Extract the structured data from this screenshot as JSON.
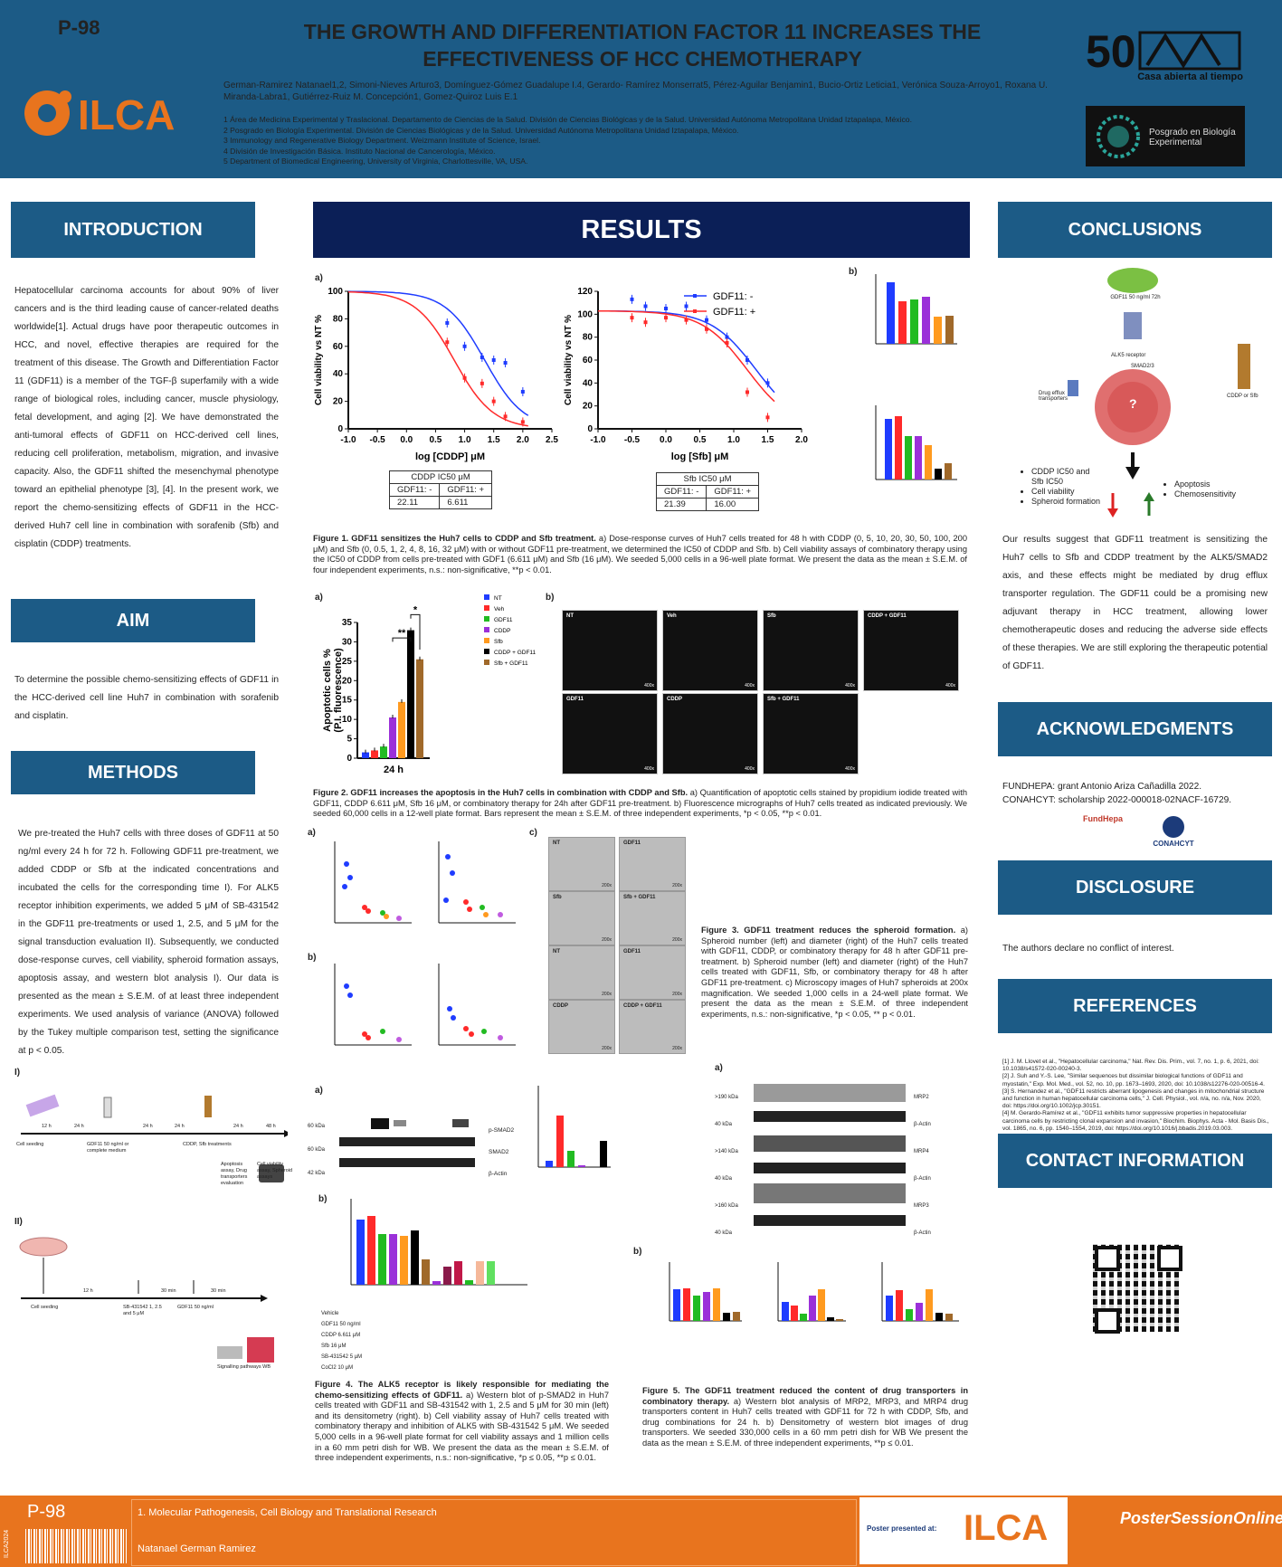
{
  "header": {
    "code": "P-98",
    "title": "THE GROWTH AND DIFFERENTIATION FACTOR 11 INCREASES THE EFFECTIVENESS OF HCC CHEMOTHERAPY",
    "authors": "German-Ramirez Natanael1,2, Simoni-Nieves Arturo3, Domínguez-Gómez Guadalupe I.4, Gerardo- Ramírez Monserrat5, Pérez-Aguilar Benjamin1, Bucio-Ortiz Leticia1, Verónica Souza-Arroyo1, Roxana U. Miranda-Labra1, Gutiérrez-Ruiz M. Concepción1, Gomez-Quiroz Luis E.1",
    "affiliations": [
      "1 Área de Medicina Experimental y Traslacional. Departamento de Ciencias de la Salud. División de Ciencias Biológicas y de la Salud. Universidad Autónoma Metropolitana Unidad Iztapalapa, México.",
      "2 Posgrado en Biología Experimental. División de Ciencias Biológicas y de la Salud. Universidad Autónoma Metropolitana Unidad Iztapalapa, México.",
      "3 Immunology and Regenerative Biology Department. Weizmann Institute of Science, Israel.",
      "4 División de Investigación Básica. Instituto Nacional de Cancerología, México.",
      "5 Department of Biomedical Engineering, University of Virginia, Charlottesville, VA, USA."
    ],
    "logo_ilca": "ILCA",
    "logo_uam_tag": "Casa abierta al tiempo",
    "logo_pbe": "Posgrado en Biología Experimental"
  },
  "intro": {
    "heading": "INTRODUCTION",
    "text": "Hepatocellular carcinoma accounts for about 90% of liver cancers and is the third leading cause of cancer-related deaths worldwide[1]. Actual drugs have poor therapeutic outcomes in HCC, and novel, effective therapies are required for the treatment of this disease. The Growth and Differentiation Factor 11 (GDF11) is a member of the TGF-β superfamily with a wide range of biological roles, including cancer, muscle physiology, fetal development, and aging [2]. We have demonstrated the anti-tumoral effects of GDF11 on HCC-derived cell lines, reducing cell proliferation, metabolism, migration, and invasive capacity. Also, the GDF11 shifted the mesenchymal phenotype toward an epithelial phenotype [3], [4]. In the present work, we report the chemo-sensitizing effects of GDF11 in the HCC-derived Huh7 cell line in combination with sorafenib (Sfb) and cisplatin (CDDP) treatments."
  },
  "aim": {
    "heading": "AIM",
    "text": "To determine the possible chemo-sensitizing effects of GDF11 in the HCC-derived cell line Huh7 in combination with sorafenib and cisplatin."
  },
  "methods": {
    "heading": "METHODS",
    "text": "We pre-treated the Huh7 cells with three doses of GDF11 at 50 ng/ml every 24 h for 72 h. Following GDF11 pre-treatment, we added CDDP or Sfb at the indicated concentrations and incubated the cells for the corresponding time I). For ALK5 receptor inhibition experiments, we added 5 μM of SB-431542 in the GDF11 pre-treatments or used 1, 2.5, and 5 μM for the signal transduction evaluation II). Subsequently, we conducted dose-response curves, cell viability, spheroid formation assays, apoptosis assay, and western blot analysis I). Our data is presented as the mean ± S.E.M. of at least three independent experiments. We used analysis of variance (ANOVA) followed by the Tukey multiple comparison test, setting the significance at p < 0.05.",
    "timeline1_label": "I)",
    "timeline1_items": [
      "Cell seeding",
      "12 h",
      "24 h",
      "GDF11 50 ng/ml or complete medium",
      "24 h",
      "24 h",
      "CDDP, Sfb treatments",
      "24 h",
      "48 h",
      "Apoptosis assay, Drug transporters evaluation",
      "Cell viability assay, Spheroid assays"
    ],
    "timeline2_label": "II)",
    "timeline2_items": [
      "Cell seeding",
      "12 h",
      "SB-431542 1, 2.5 and 5 μM",
      "30 min",
      "GDF11 50 ng/ml",
      "30 min",
      "Signalling pathways WB"
    ]
  },
  "results": {
    "heading": "RESULTS",
    "fig1": {
      "label_a": "a)",
      "label_b": "b)",
      "caption_bold": "Figure 1. GDF11 sensitizes the Huh7 cells to CDDP and Sfb treatment.",
      "caption": " a) Dose-response curves of Huh7 cells treated for 48 h with CDDP (0, 5, 10, 20, 30, 50, 100, 200 μM) and Sfb (0, 0.5, 1, 2, 4, 8, 16, 32 μM) with or without GDF11 pre-treatment, we determined the IC50 of CDDP and Sfb. b) Cell viability assays of combinatory therapy using the IC50 of CDDP from cells pre-treated with GDF1 (6.611 μM) and Sfb (16 μM). We seeded 5,000 cells in a 96-well plate format. We present the data as the mean ± S.E.M. of four independent experiments, n.s.: non-significative, **p < 0.01.",
      "cddp_table": {
        "title": "CDDP IC50 μM",
        "h1": "GDF11: -",
        "h2": "GDF11: +",
        "v1": "22.11",
        "v2": "6.611"
      },
      "sfb_table": {
        "title": "Sfb IC50 μM",
        "h1": "GDF11: -",
        "h2": "GDF11: +",
        "v1": "21.39",
        "v2": "16.00"
      }
    },
    "fig2": {
      "label_a": "a)",
      "label_b": "b)",
      "caption_bold": "Figure 2. GDF11 increases the apoptosis in the Huh7 cells in combination with CDDP and Sfb.",
      "caption": " a) Quantification of apoptotic cells stained by propidium iodide treated with GDF11, CDDP 6.611 μM, Sfb 16 μM, or combinatory therapy for 24h after GDF11 pre-treatment. b) Fluorescence micrographs of Huh7 cells treated as indicated previously. We seeded 60,000 cells in a 12-well plate format. Bars represent the mean ± S.E.M. of three independent experiments, *p < 0.05, **p < 0.01.",
      "panels": [
        "NT",
        "Veh",
        "Sfb",
        "CDDP + GDF11",
        "GDF11",
        "CDDP",
        "Sfb + GDF11"
      ],
      "mag": "400x"
    },
    "fig3": {
      "label_a": "a)",
      "label_b": "b)",
      "label_c": "c)",
      "caption_bold": "Figure 3. GDF11 treatment reduces the spheroid formation.",
      "caption": " a) Spheroid number (left) and diameter (right) of the Huh7 cells treated with GDF11, CDDP, or combinatory therapy for 48 h after GDF11 pre-treatment. b) Spheroid number (left) and diameter (right) of the Huh7 cells treated with GDF11, Sfb, or combinatory therapy for 48 h after GDF11 pre-treatment. c) Microscopy images of Huh7 spheroids at 200x magnification. We seeded 1,000 cells in a 24-well plate format. We present the data as the mean ± S.E.M. of three independent experiments, n.s.: non-significative, *p < 0.05, ** p < 0.01.",
      "panels": [
        "NT",
        "GDF11",
        "Sfb",
        "Sfb + GDF11",
        "NT",
        "GDF11",
        "CDDP",
        "CDDP + GDF11"
      ],
      "mag": "200x"
    },
    "fig4": {
      "label_a": "a)",
      "label_b": "b)",
      "caption_bold": "Figure 4. The ALK5 receptor is likely responsible for mediating the chemo-sensitizing effects of GDF11.",
      "caption": " a) Western blot of p-SMAD2 in Huh7 cells treated with GDF11 and SB-431542 with 1, 2.5 and 5 μM for 30 min (left) and its densitometry (right). b) Cell viability assay of Huh7 cells treated with combinatory therapy and inhibition of ALK5 with SB-431542 5 μM. We seeded 5,000 cells in a 96-well plate format for cell viability assays and 1 million cells in a 60 mm petri dish for WB. We present the data as the mean ± S.E.M. of three independent experiments, n.s.: non-significative, *p ≤ 0.05, **p ≤ 0.01.",
      "blot_rows": [
        "p-SMAD2",
        "SMAD2",
        "β-Actin"
      ],
      "blot_kda": [
        "60 kDa",
        "60 kDa",
        "42 kDa"
      ],
      "treat_rows": [
        "Vehicle",
        "GDF11 50 ng/ml",
        "CDDP 6.611 μM",
        "Sfb 16 μM",
        "SB-431542 5 μM",
        "CoCl2 10 μM"
      ]
    },
    "fig5": {
      "label_a": "a)",
      "label_b": "b)",
      "caption_bold": "Figure 5. The GDF11 treatment reduced the content of drug transporters in combinatory therapy.",
      "caption": " a) Western blot analysis of MRP2, MRP3, and MRP4 drug transporters content in Huh7 cells treated with GDF11 for 72 h with CDDP, Sfb, and drug combinations for 24 h. b) Densitometry of western blot images of drug transporters. We seeded 330,000 cells in a 60 mm petri dish for WB We present the data as the mean ± S.E.M. of three independent experiments, **p ≤ 0.01.",
      "lanes": [
        "NT",
        "Veh",
        "GDF11",
        "CDDP",
        "Sfb",
        "GDF11 + CDDP",
        "GDF11 + Sfb"
      ],
      "blot_rows": [
        "MRP2",
        "β-Actin",
        "MRP4",
        "β-Actin",
        "MRP3",
        "β-Actin"
      ],
      "blot_kda": [
        ">190 kDa",
        "40 kDa",
        ">140 kDa",
        "40 kDa",
        ">160 kDa",
        "40 kDa"
      ]
    }
  },
  "conclusions": {
    "heading": "CONCLUSIONS",
    "diagram": {
      "gdf11": "GDF11 50 ng/ml 72h",
      "receptor": "ALK5 receptor",
      "smad": "SMAD2/3",
      "efflux": "Drug efflux transporters",
      "drug": "CDDP or Sfb",
      "q": "?",
      "down_list": [
        "CDDP IC50 and Sfb IC50",
        "Cell viability",
        "Spheroid formation"
      ],
      "up_list": [
        "Apoptosis",
        "Chemosensitivity"
      ]
    },
    "text": "Our results suggest that GDF11 treatment is sensitizing the Huh7 cells to Sfb and CDDP treatment by the ALK5/SMAD2 axis, and these effects might be mediated by drug efflux transporter regulation. The GDF11 could be a promising new adjuvant therapy in HCC treatment, allowing lower chemotherapeutic doses and reducing the adverse side effects of these therapies. We are still exploring the therapeutic potential of GDF11."
  },
  "ack": {
    "heading": "ACKNOWLEDGMENTS",
    "lines": [
      "FUNDHEPA: grant Antonio Ariza Cañadilla 2022.",
      "CONAHCYT: scholarship 2022-000018-02NACF-16729."
    ],
    "logo1": "FundHepa",
    "logo2": "CONAHCYT"
  },
  "disclosure": {
    "heading": "DISCLOSURE",
    "text": "The authors declare no conflict of interest."
  },
  "references": {
    "heading": "REFERENCES",
    "items": [
      "[1]      J. M. Llovet et al., \"Hepatocellular carcinoma,\" Nat. Rev. Dis. Prim., vol. 7, no. 1, p. 6, 2021, doi: 10.1038/s41572-020-00240-3.",
      "[2]      J. Suh and Y.-S. Lee, \"Similar sequences but dissimilar biological functions of GDF11 and myostatin,\" Exp. Mol. Med., vol. 52, no. 10, pp. 1673–1693, 2020, doi: 10.1038/s12276-020-00516-4.",
      "[3]      S. Hernandez et al., \"GDF11 restricts aberrant lipogenesis and changes in mitochondrial structure and function in human hepatocellular carcinoma cells,\" J. Cell. Physiol., vol. n/a, no. n/a, Nov. 2020, doi: https://doi.org/10.1002/jcp.30151.",
      "[4]      M. Gerardo-Ramírez et al., \"GDF11 exhibits tumor suppressive properties in hepatocellular carcinoma cells by restricting clonal expansion and invasion,\" Biochim. Biophys. Acta - Mol. Basis Dis., vol. 1865, no. 6, pp. 1540–1554, 2019, doi: https://doi.org/10.1016/j.bbadis.2019.03.003."
    ]
  },
  "contact": {
    "heading": "CONTACT INFORMATION"
  },
  "footer": {
    "side": "ILCA2024",
    "code": "P-98",
    "category": "1. Molecular Pathogenesis, Cell Biology and Translational Research",
    "author": "Natanael German Ramirez",
    "presented": "Poster presented at:",
    "ilca": "ILCA",
    "pso": "PosterSessionOnline"
  },
  "chart_data": [
    {
      "id": "fig1a-cddp",
      "type": "line",
      "xlabel": "log [CDDP] μM",
      "ylabel": "Cell viability vs NT %",
      "xlim": [
        -1.0,
        2.5
      ],
      "ylim": [
        0,
        100
      ],
      "xticks": [
        "-1.0",
        "-0.5",
        "0.0",
        "0.5",
        "1.0",
        "1.5",
        "2.0",
        "2.5"
      ],
      "yticks": [
        "0",
        "20",
        "40",
        "60",
        "80",
        "100"
      ],
      "series": [
        {
          "name": "GDF11: -",
          "color": "#1f3cff",
          "x": [
            0.7,
            1.0,
            1.3,
            1.5,
            1.7,
            2.0
          ],
          "y": [
            77,
            60,
            52,
            50,
            48,
            27
          ],
          "ic50": 1.344
        },
        {
          "name": "GDF11: +",
          "color": "#ff2a2a",
          "x": [
            0.7,
            1.0,
            1.3,
            1.5,
            1.7,
            2.0
          ],
          "y": [
            63,
            37,
            33,
            20,
            9,
            5
          ],
          "ic50": 0.82
        }
      ]
    },
    {
      "id": "fig1a-sfb",
      "type": "line",
      "xlabel": "log [Sfb] μM",
      "ylabel": "Cell viability vs NT %",
      "xlim": [
        -1.0,
        2.0
      ],
      "ylim": [
        0,
        120
      ],
      "xticks": [
        "-1.0",
        "-0.5",
        "0.0",
        "0.5",
        "1.0",
        "1.5",
        "2.0"
      ],
      "yticks": [
        "0",
        "20",
        "40",
        "60",
        "80",
        "100",
        "120"
      ],
      "legend": "top-right",
      "series": [
        {
          "name": "GDF11: -",
          "color": "#1f3cff",
          "x": [
            -0.5,
            -0.3,
            0.0,
            0.3,
            0.6,
            0.9,
            1.2,
            1.5
          ],
          "y": [
            113,
            107,
            105,
            107,
            95,
            80,
            60,
            40
          ],
          "ic50": 1.33
        },
        {
          "name": "GDF11: +",
          "color": "#ff2a2a",
          "x": [
            -0.5,
            -0.3,
            0.0,
            0.3,
            0.6,
            0.9,
            1.2,
            1.5
          ],
          "y": [
            97,
            93,
            97,
            95,
            87,
            75,
            32,
            10
          ],
          "ic50": 1.2
        }
      ]
    },
    {
      "id": "fig2a",
      "type": "bar",
      "ylabel": "Apoptotic cells % (P.I. fluorescence)",
      "xlabel": "24 h",
      "ylim": [
        0,
        35
      ],
      "yticks": [
        "0",
        "5",
        "10",
        "15",
        "20",
        "25",
        "30",
        "35"
      ],
      "categories": [
        "NT",
        "Veh",
        "GDF11",
        "CDDP",
        "Sfb",
        "CDDP + GDF11",
        "Sfb + GDF11"
      ],
      "colors": [
        "#1f3cff",
        "#ff2a2a",
        "#22bb22",
        "#9b30d9",
        "#ff9a1f",
        "#000000",
        "#a0692a"
      ],
      "values": [
        1.5,
        2,
        3,
        10.5,
        14.5,
        33,
        25.5
      ],
      "sig": [
        "**",
        "*"
      ]
    }
  ]
}
